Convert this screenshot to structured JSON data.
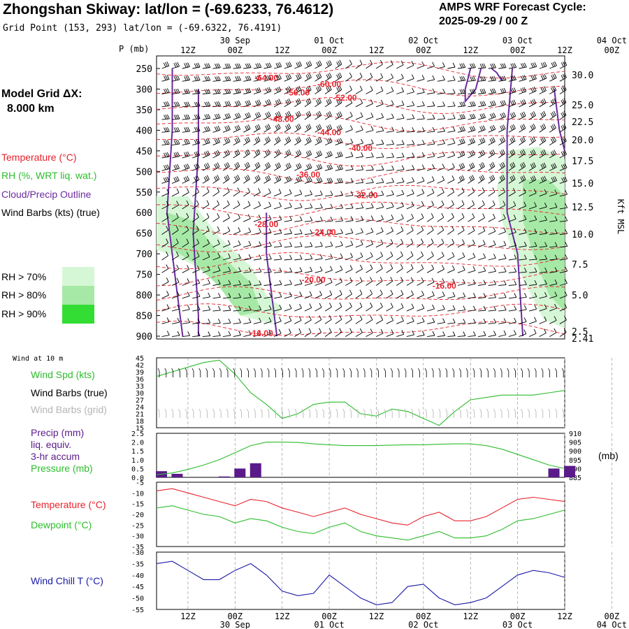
{
  "header": {
    "title": "Zhongshan Skiway:  lat/lon = (-69.6233, 76.4612)",
    "subtitle": "Grid Point (153, 293) lat/lon = (-69.6322, 76.4191)",
    "cycle_line1": "AMPS WRF Forecast Cycle:",
    "cycle_line2": "2025-09-29 / 00  Z",
    "model_grid_line1": "Model Grid ΔX:",
    "model_grid_line2": "8.000 km"
  },
  "time_axis": {
    "hour_labels": [
      "12Z",
      "00Z",
      "12Z",
      "00Z",
      "12Z",
      "00Z",
      "12Z",
      "00Z",
      "12Z",
      "00Z"
    ],
    "day_labels": [
      "30 Sep",
      "01 Oct",
      "02 Oct",
      "03 Oct",
      "04 Oct"
    ],
    "day_label_hour_index": [
      1,
      3,
      5,
      7,
      9
    ]
  },
  "colors": {
    "temperature": "#e8222c",
    "rh": "#2dbd2d",
    "cloud_outline": "#6a2a9e",
    "wind": "#000000",
    "wind_grid": "#b0b0b0",
    "windchill": "#1a1aa8",
    "precip": "#5a1a8a",
    "rh70": "#d6f7d6",
    "rh80": "#a6e9a6",
    "rh90": "#33dd33"
  },
  "legend": {
    "temperature": "Temperature (°C)",
    "rh": "RH (%, WRT liq. wat.)",
    "cloud": "Cloud/Precip Outline",
    "wind": "Wind Barbs (kts) (true)",
    "rh70": "RH > 70%",
    "rh80": "RH > 80%",
    "rh90": "RH > 90%"
  },
  "panels": {
    "wind10m_title": "Wind at 10 m",
    "windspd_label": "Wind Spd (kts)",
    "windbarb_true_label": "Wind Barbs (true)",
    "windbarb_grid_label": "Wind Barbs (grid)",
    "precip_label1": "Precip (mm)",
    "precip_label2": "liq. equiv.",
    "precip_label3": "3-hr accum",
    "pressure_label": "Pressure (mb)",
    "pressure_unit": "(mb)",
    "temp_label": "Temperature (°C)",
    "dewpoint_label": "Dewpoint (°C)",
    "windchill_label": "Wind Chill T (°C)"
  },
  "chart_data": [
    {
      "type": "heatmap",
      "name": "time-height cross section",
      "pressure_axis_label": "P (mb)",
      "pressure_ticks": [
        "250",
        "300",
        "350",
        "400",
        "450",
        "500",
        "550",
        "600",
        "650",
        "700",
        "750",
        "800",
        "850",
        "900"
      ],
      "height_axis_label": "Kft MSL",
      "height_ticks": [
        "30.0",
        "25.0",
        "22.5",
        "20.0",
        "17.5",
        "15.0",
        "12.5",
        "10.0",
        "7.5",
        "5.0",
        "2.5",
        "2.41"
      ],
      "temperature_contour_labels": [
        "-64.00",
        "-60.00",
        "-56.00",
        "-52.00",
        "-48.00",
        "-44.00",
        "-40.00",
        "-36.00",
        "-32.00",
        "-28.00",
        "-24.00",
        "-20.00",
        "-16.00",
        "-16.00"
      ],
      "temperature_label_positions": [
        {
          "label": "-64.00",
          "hour": 21,
          "p": 280
        },
        {
          "label": "-60.00",
          "hour": 33,
          "p": 295
        },
        {
          "label": "-56.00",
          "hour": 27,
          "p": 315
        },
        {
          "label": "-52.00",
          "hour": 36,
          "p": 328
        },
        {
          "label": "-48.00",
          "hour": 24,
          "p": 380
        },
        {
          "label": "-44.00",
          "hour": 33,
          "p": 412
        },
        {
          "label": "-40.00",
          "hour": 39,
          "p": 450
        },
        {
          "label": "-36.00",
          "hour": 29,
          "p": 515
        },
        {
          "label": "-32.00",
          "hour": 40,
          "p": 565
        },
        {
          "label": "-28.00",
          "hour": 21,
          "p": 635
        },
        {
          "label": "-24.00",
          "hour": 32,
          "p": 655
        },
        {
          "label": "-20.00",
          "hour": 30,
          "p": 770
        },
        {
          "label": "-16.00",
          "hour": 20,
          "p": 900
        },
        {
          "label": "-16.00",
          "hour": 55,
          "p": 785
        }
      ]
    },
    {
      "type": "line",
      "name": "wind at 10 m",
      "y_ticks": [
        "45",
        "42",
        "39",
        "36",
        "33",
        "30",
        "27",
        "24",
        "21",
        "18",
        "15"
      ],
      "ylim": [
        15,
        45
      ],
      "x_hours": [
        0,
        3,
        6,
        9,
        12,
        15,
        18,
        21,
        24,
        27,
        30,
        33,
        36,
        39,
        42,
        45,
        48,
        51,
        54,
        57,
        60,
        63,
        66,
        69,
        72,
        75,
        78
      ],
      "series": [
        {
          "name": "Wind Spd (kts)",
          "values": [
            37,
            39,
            41,
            43,
            44,
            38,
            30,
            25,
            19,
            21,
            25,
            26,
            26,
            21,
            20,
            23,
            22,
            19,
            16,
            22,
            27,
            28,
            29,
            29,
            29,
            30,
            31
          ]
        }
      ]
    },
    {
      "type": "bar",
      "name": "precip and pressure",
      "y_left_ticks": [
        "2.5",
        "2.0",
        "1.5",
        "1.0",
        "0.5",
        "0.0"
      ],
      "y_right_ticks": [
        "910",
        "905",
        "900",
        "895",
        "890",
        "885"
      ],
      "precip_bars": [
        {
          "hour": 0,
          "value": 0.35
        },
        {
          "hour": 3,
          "value": 0.2
        },
        {
          "hour": 12,
          "value": 0.05
        },
        {
          "hour": 15,
          "value": 0.5
        },
        {
          "hour": 18,
          "value": 0.8
        },
        {
          "hour": 75,
          "value": 0.5
        },
        {
          "hour": 78,
          "value": 0.65
        }
      ],
      "series": [
        {
          "name": "Pressure (mb)",
          "x_hours": [
            0,
            3,
            6,
            9,
            12,
            15,
            18,
            21,
            24,
            27,
            30,
            33,
            36,
            39,
            42,
            45,
            48,
            51,
            54,
            57,
            60,
            63,
            66,
            69,
            72,
            75,
            78
          ],
          "values": [
            886.5,
            887.5,
            889.5,
            892,
            895,
            899,
            903,
            905,
            905,
            904.8,
            904,
            903.5,
            903,
            903,
            903,
            903.3,
            903.5,
            903.5,
            903.8,
            904,
            904,
            903,
            901,
            898,
            895,
            892,
            890
          ]
        }
      ]
    },
    {
      "type": "line",
      "name": "temperature and dewpoint",
      "y_ticks": [
        "-5",
        "-10",
        "-15",
        "-20",
        "-25",
        "-30",
        "-35"
      ],
      "ylim": [
        -35,
        -5
      ],
      "x_hours": [
        0,
        3,
        6,
        9,
        12,
        15,
        18,
        21,
        24,
        27,
        30,
        33,
        36,
        39,
        42,
        45,
        48,
        51,
        54,
        57,
        60,
        63,
        66,
        69,
        72,
        75,
        78
      ],
      "series": [
        {
          "name": "Temperature (°C)",
          "values": [
            -9,
            -8,
            -10,
            -12,
            -14,
            -16,
            -13,
            -14,
            -17,
            -19,
            -21,
            -19,
            -17,
            -20,
            -22,
            -24,
            -25,
            -21,
            -19,
            -23,
            -23,
            -21,
            -17,
            -13,
            -12,
            -13,
            -14
          ]
        },
        {
          "name": "Dewpoint (°C)",
          "values": [
            -17,
            -16,
            -18,
            -20,
            -21,
            -24,
            -22,
            -23,
            -26,
            -28,
            -29,
            -26,
            -24,
            -28,
            -30,
            -31,
            -32,
            -30,
            -28,
            -31,
            -31,
            -30,
            -27,
            -23,
            -22,
            -20,
            -18
          ]
        }
      ]
    },
    {
      "type": "line",
      "name": "wind chill",
      "y_ticks": [
        "-30",
        "-35",
        "-40",
        "-45",
        "-50",
        "-55"
      ],
      "ylim": [
        -55,
        -30
      ],
      "x_hours": [
        0,
        3,
        6,
        9,
        12,
        15,
        18,
        21,
        24,
        27,
        30,
        33,
        36,
        39,
        42,
        45,
        48,
        51,
        54,
        57,
        60,
        63,
        66,
        69,
        72,
        75,
        78
      ],
      "series": [
        {
          "name": "Wind Chill T (°C)",
          "values": [
            -35,
            -34,
            -38,
            -42,
            -42,
            -38,
            -35,
            -40,
            -47,
            -49,
            -48,
            -40,
            -45,
            -50,
            -53,
            -52,
            -45,
            -44,
            -50,
            -53,
            -52,
            -50,
            -45,
            -40,
            -38,
            -39,
            -41
          ]
        }
      ]
    }
  ]
}
